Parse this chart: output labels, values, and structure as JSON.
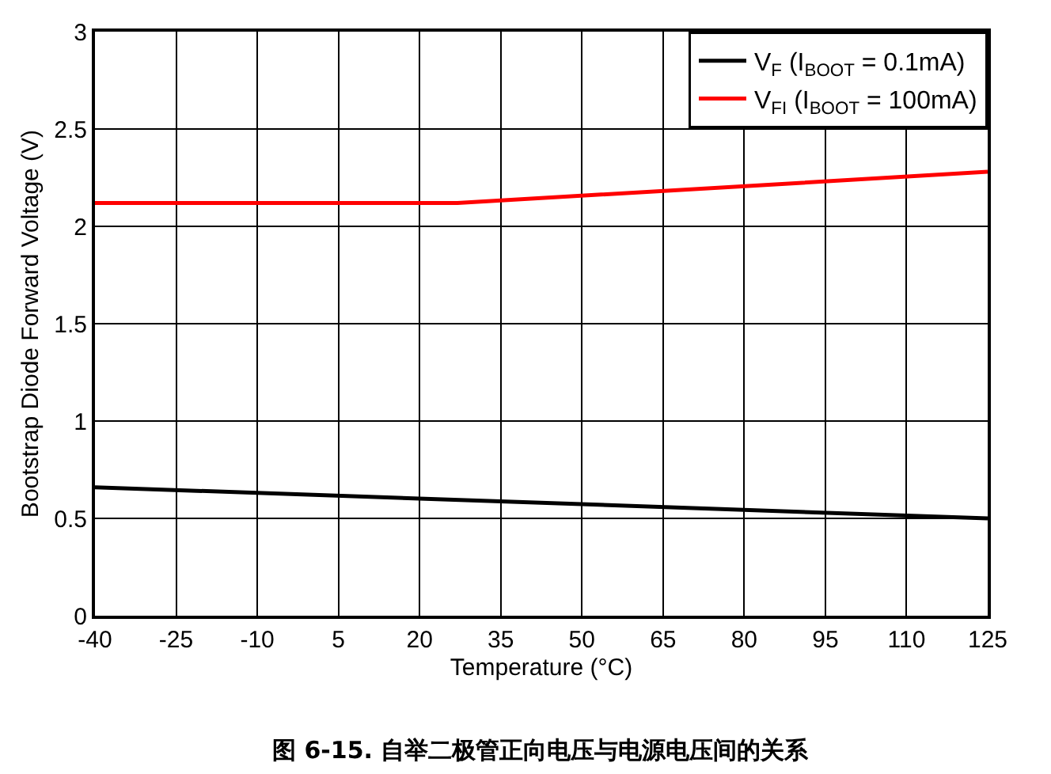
{
  "chart_data": {
    "type": "line",
    "xlabel": "Temperature (°C)",
    "ylabel": "Bootstrap Diode Forward Voltage (V)",
    "series": [
      {
        "name": "V$_{F}$ (I$_{BOOT}$ = 0.1mA)",
        "color": "#000000",
        "x": [
          -40,
          125
        ],
        "values": [
          0.66,
          0.5
        ]
      },
      {
        "name": "V$_{FI}$ (I$_{BOOT}$ = 100mA)",
        "color": "#ff0000",
        "x": [
          -40,
          27,
          125
        ],
        "values": [
          2.12,
          2.12,
          2.28
        ]
      }
    ],
    "xlim": [
      -40,
      125
    ],
    "xticks": [
      -40,
      -25,
      -10,
      5,
      20,
      35,
      50,
      65,
      80,
      95,
      110,
      125
    ],
    "ylim": [
      0,
      3
    ],
    "yticks": [
      0,
      0.5,
      1,
      1.5,
      2,
      2.5,
      3
    ],
    "grid": true,
    "legend": "top right",
    "line_style": "solid",
    "marker": "none",
    "annotations": [
      "图 6-15. 自举二极管正向电压与电源电压间的关系"
    ]
  }
}
